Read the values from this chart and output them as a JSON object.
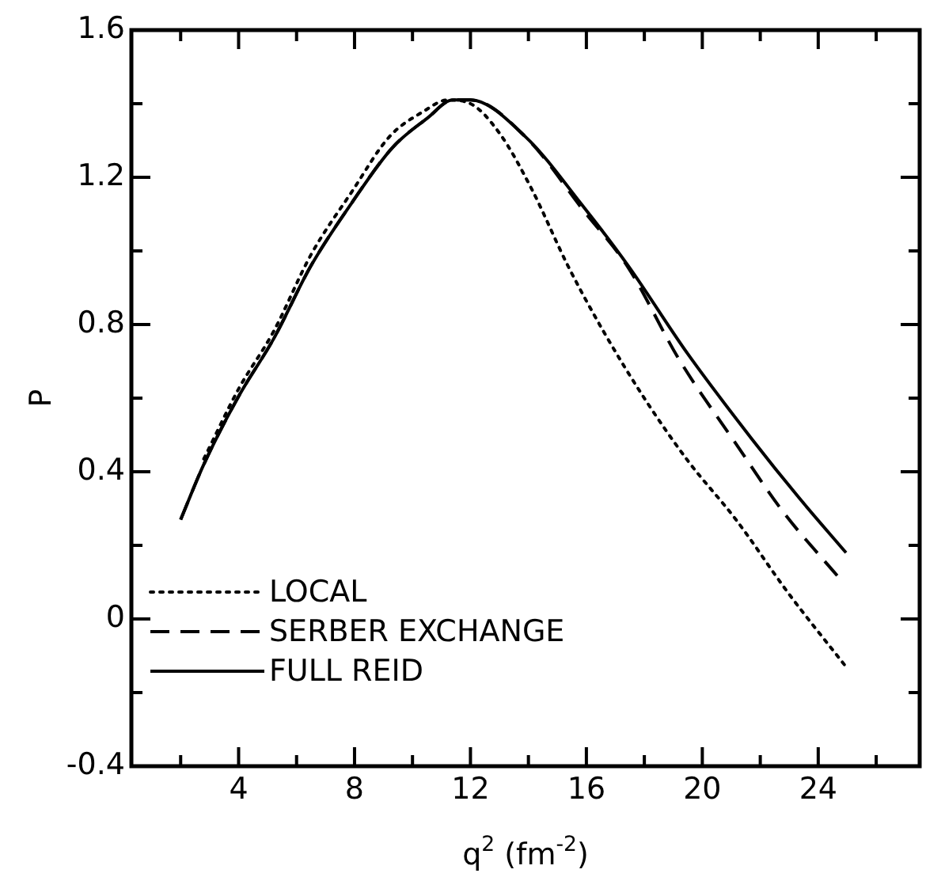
{
  "chart_data": {
    "type": "line",
    "xlabel": "q$^{2}$ (fm$^{-2}$)",
    "ylabel": "P",
    "xlim": [
      0.3,
      27.5
    ],
    "ylim": [
      -0.4,
      1.6
    ],
    "xticks": [
      {
        "value": 2,
        "label": null
      },
      4,
      {
        "value": 6,
        "label": null
      },
      8,
      {
        "value": 10,
        "label": null
      },
      12,
      {
        "value": 14,
        "label": null
      },
      16,
      {
        "value": 18,
        "label": null
      },
      20,
      {
        "value": 22,
        "label": null
      },
      24,
      {
        "value": 26,
        "label": null
      }
    ],
    "yticks": [
      -0.4,
      {
        "value": -0.2,
        "label": null
      },
      0,
      {
        "value": 0.2,
        "label": null
      },
      0.4,
      {
        "value": 0.6,
        "label": null
      },
      0.8,
      {
        "value": 1.0,
        "label": null
      },
      1.2,
      {
        "value": 1.4,
        "label": null
      },
      1.6
    ],
    "grid": false,
    "legend": "bottom left",
    "marker": "none",
    "series": [
      {
        "name": "LOCAL",
        "color": "#000000",
        "line_style": "dotted",
        "x": [
          2.8,
          4,
          5.2,
          6.5,
          7.9,
          9.2,
          10.4,
          11.2,
          12,
          13,
          14.1,
          15.36,
          16.6,
          18.08,
          19.5,
          21.16,
          22.97,
          24.96
        ],
        "values": [
          0.435,
          0.625,
          0.78,
          0.99,
          1.16,
          1.31,
          1.38,
          1.41,
          1.4,
          1.32,
          1.17,
          0.96,
          0.78,
          0.59,
          0.43,
          0.27,
          0.07,
          -0.13
        ]
      },
      {
        "name": "SERBER EXCHANGE",
        "color": "#000000",
        "line_style": "dashed",
        "x": [
          2,
          2.8,
          4,
          5.2,
          6.5,
          7.9,
          9.3,
          10.5,
          11.4,
          12,
          13.9,
          15.9,
          17.44,
          19.2,
          21.16,
          22.8,
          24.74
        ],
        "values": [
          0.27,
          0.42,
          0.605,
          0.76,
          0.96,
          1.13,
          1.28,
          1.36,
          1.41,
          1.41,
          1.31,
          1.11,
          0.955,
          0.705,
          0.476,
          0.29,
          0.11
        ]
      },
      {
        "name": "FULL REID",
        "color": "#000000",
        "line_style": "solid",
        "x": [
          2,
          2.8,
          4,
          5.2,
          6.5,
          7.9,
          9.3,
          10.5,
          11.4,
          12,
          13.9,
          15.9,
          17.44,
          19.5,
          21.7,
          23.33,
          24.96
        ],
        "values": [
          0.27,
          0.42,
          0.605,
          0.76,
          0.96,
          1.13,
          1.28,
          1.36,
          1.41,
          1.41,
          1.31,
          1.12,
          0.96,
          0.72,
          0.49,
          0.33,
          0.18
        ]
      }
    ]
  }
}
